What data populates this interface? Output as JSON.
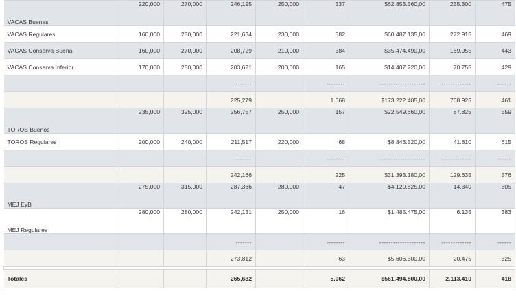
{
  "rows": [
    {
      "label": "VACAS Buenas",
      "c1": "220,000",
      "c2": "270,000",
      "c3": "246,195",
      "c4": "250,000",
      "c5": "537",
      "c6": "$62.853.560,00",
      "c7": "255.300",
      "c8": "475"
    },
    {
      "label": "VACAS Regulares",
      "c1": "160,000",
      "c2": "250,000",
      "c3": "221,634",
      "c4": "230,000",
      "c5": "582",
      "c6": "$60.487.135,00",
      "c7": "272.915",
      "c8": "469"
    },
    {
      "label": "VACAS Conserva Buena",
      "c1": "160,000",
      "c2": "270,000",
      "c3": "208,729",
      "c4": "210,000",
      "c5": "384",
      "c6": "$35.474.490,00",
      "c7": "169.955",
      "c8": "443"
    },
    {
      "label": "VACAS Conserva Inferior",
      "c1": "170,000",
      "c2": "250,000",
      "c3": "203,621",
      "c4": "200,000",
      "c5": "165",
      "c6": "$14.407.220,00",
      "c7": "70.755",
      "c8": "429"
    },
    {
      "dash": true,
      "c3": "-------",
      "c5": "--------",
      "c6": "--------------------",
      "c7": "-------------",
      "c8": "------"
    },
    {
      "label": "",
      "c3": "225,279",
      "c5": "1.668",
      "c6": "$173.222.405,00",
      "c7": "768.925",
      "c8": "461"
    },
    {
      "label": "TOROS Buenos",
      "c1": "235,000",
      "c2": "325,000",
      "c3": "256,757",
      "c4": "250,000",
      "c5": "157",
      "c6": "$22.549.660,00",
      "c7": "87.825",
      "c8": "559"
    },
    {
      "label": "TOROS Regulares",
      "c1": "200,000",
      "c2": "240,000",
      "c3": "211,517",
      "c4": "220,000",
      "c5": "68",
      "c6": "$8.843.520,00",
      "c7": "41.810",
      "c8": "615"
    },
    {
      "dash": true,
      "c3": "-------",
      "c5": "--------",
      "c6": "--------------------",
      "c7": "-------------",
      "c8": "------"
    },
    {
      "label": "",
      "c3": "242,166",
      "c5": "225",
      "c6": "$31.393.180,00",
      "c7": "129.635",
      "c8": "576"
    },
    {
      "label": "MEJ EyB",
      "c1": "275,000",
      "c2": "315,000",
      "c3": "287,366",
      "c4": "280,000",
      "c5": "47",
      "c6": "$4.120.825,00",
      "c7": "14.340",
      "c8": "305"
    },
    {
      "label": "MEJ Regulares",
      "c1": "280,000",
      "c2": "280,000",
      "c3": "242,131",
      "c4": "250,000",
      "c5": "16",
      "c6": "$1.485.475,00",
      "c7": "6.135",
      "c8": "383"
    },
    {
      "dash": true,
      "c3": "-------",
      "c5": "--------",
      "c6": "--------------------",
      "c7": "-------------",
      "c8": "------"
    },
    {
      "label": "",
      "c3": "273,812",
      "c5": "63",
      "c6": "$5.606.300,00",
      "c7": "20.475",
      "c8": "325"
    }
  ],
  "totals": {
    "label": "Totales",
    "c3": "265,682",
    "c5": "5.062",
    "c6": "$561.494.800,00",
    "c7": "2.113.410",
    "c8": "418"
  }
}
